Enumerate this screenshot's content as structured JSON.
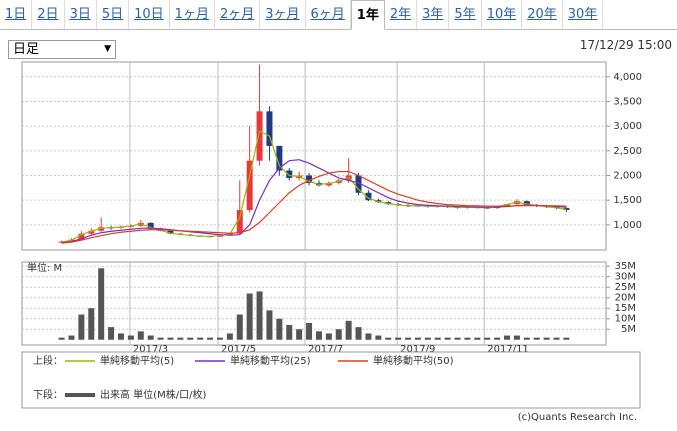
{
  "tabs": {
    "items": [
      "1日",
      "2日",
      "3日",
      "5日",
      "10日",
      "1ヶ月",
      "2ヶ月",
      "3ヶ月",
      "6ヶ月",
      "1年",
      "2年",
      "3年",
      "5年",
      "10年",
      "20年",
      "30年"
    ],
    "selected": 9
  },
  "dropdown": "日足",
  "timestamp": "17/12/29 15:00",
  "chart_data": [
    {
      "type": "candlestick",
      "open": [
        640,
        660,
        700,
        820,
        880,
        950,
        940,
        960,
        980,
        1040,
        920,
        880,
        820,
        800,
        780,
        770,
        760,
        790,
        820,
        1300,
        2300,
        3300,
        2600,
        2100,
        1950,
        2000,
        1850,
        1800,
        1850,
        1900,
        2000,
        1650,
        1500,
        1460,
        1420,
        1400,
        1380,
        1390,
        1370,
        1380,
        1360,
        1350,
        1360,
        1350,
        1340,
        1380,
        1420,
        1480,
        1400,
        1380,
        1360,
        1340
      ],
      "high": [
        680,
        730,
        870,
        930,
        1150,
        980,
        990,
        1010,
        1100,
        1050,
        940,
        890,
        830,
        810,
        790,
        780,
        800,
        830,
        1900,
        3000,
        4250,
        3400,
        2600,
        2150,
        2080,
        2050,
        1900,
        1880,
        1930,
        2350,
        2050,
        1700,
        1530,
        1480,
        1440,
        1420,
        1400,
        1410,
        1400,
        1395,
        1380,
        1370,
        1375,
        1365,
        1390,
        1430,
        1520,
        1490,
        1420,
        1395,
        1375,
        1355
      ],
      "low": [
        630,
        650,
        690,
        800,
        860,
        900,
        920,
        940,
        960,
        900,
        870,
        810,
        790,
        770,
        760,
        750,
        750,
        780,
        810,
        1250,
        2200,
        2300,
        2000,
        1900,
        1900,
        1800,
        1780,
        1770,
        1820,
        1850,
        1600,
        1480,
        1440,
        1400,
        1380,
        1360,
        1360,
        1350,
        1350,
        1340,
        1330,
        1330,
        1335,
        1320,
        1320,
        1370,
        1410,
        1380,
        1360,
        1340,
        1320,
        1260
      ],
      "close": [
        660,
        700,
        820,
        880,
        950,
        940,
        960,
        980,
        1040,
        920,
        880,
        820,
        800,
        780,
        770,
        760,
        790,
        820,
        1300,
        2300,
        3300,
        2600,
        2100,
        1950,
        2000,
        1850,
        1800,
        1850,
        1900,
        2000,
        1650,
        1500,
        1460,
        1420,
        1400,
        1380,
        1390,
        1370,
        1380,
        1360,
        1350,
        1360,
        1350,
        1340,
        1380,
        1420,
        1480,
        1400,
        1380,
        1360,
        1340,
        1300
      ],
      "up_color": "#e8383d",
      "down_color": "#1f3a84",
      "legend_label": "上段：",
      "series": [
        {
          "name": "単純移動平均(5)",
          "color": "#9cb800",
          "values": [
            650,
            690,
            800,
            870,
            930,
            945,
            955,
            975,
            1020,
            950,
            890,
            830,
            805,
            785,
            775,
            765,
            785,
            815,
            1150,
            2000,
            2900,
            2800,
            2200,
            2000,
            1980,
            1880,
            1820,
            1840,
            1880,
            1960,
            1720,
            1540,
            1470,
            1430,
            1405,
            1385,
            1390,
            1375,
            1378,
            1365,
            1355,
            1358,
            1352,
            1345,
            1370,
            1410,
            1460,
            1420,
            1390,
            1365,
            1345,
            1310
          ]
        },
        {
          "name": "単純移動平均(25)",
          "color": "#7a2ccf",
          "values": [
            640,
            660,
            720,
            790,
            840,
            870,
            890,
            910,
            930,
            935,
            920,
            900,
            880,
            860,
            840,
            820,
            800,
            790,
            800,
            1000,
            1500,
            1900,
            2150,
            2300,
            2320,
            2250,
            2150,
            2050,
            1950,
            1900,
            1850,
            1750,
            1650,
            1550,
            1480,
            1440,
            1410,
            1395,
            1385,
            1380,
            1370,
            1365,
            1360,
            1355,
            1360,
            1370,
            1390,
            1400,
            1395,
            1385,
            1370,
            1355
          ]
        },
        {
          "name": "単純移動平均(50)",
          "color": "#e03c20",
          "values": [
            630,
            650,
            690,
            740,
            780,
            820,
            850,
            870,
            890,
            900,
            900,
            890,
            880,
            870,
            860,
            850,
            840,
            830,
            840,
            900,
            1050,
            1250,
            1450,
            1650,
            1800,
            1900,
            1980,
            2050,
            2080,
            2080,
            2000,
            1900,
            1800,
            1700,
            1620,
            1560,
            1500,
            1460,
            1430,
            1410,
            1400,
            1390,
            1385,
            1380,
            1378,
            1380,
            1385,
            1390,
            1390,
            1388,
            1385,
            1380
          ]
        }
      ],
      "xlim": [
        -4,
        55
      ],
      "xticks": [
        {
          "value": 6.9,
          "label": "2017/3"
        },
        {
          "value": 15.8,
          "label": "2017/5"
        },
        {
          "value": 24.6,
          "label": "2017/7"
        },
        {
          "value": 33.9,
          "label": "2017/9"
        },
        {
          "value": 42.7,
          "label": "2017/11"
        }
      ],
      "ylim": [
        490,
        4300
      ],
      "yticks": [
        {
          "value": 1000,
          "label": "1,000"
        },
        {
          "value": 1500,
          "label": "1,500"
        },
        {
          "value": 2000,
          "label": "2,000"
        },
        {
          "value": 2500,
          "label": "2,500"
        },
        {
          "value": 3000,
          "label": "3,000"
        },
        {
          "value": 3500,
          "label": "3,500"
        },
        {
          "value": 4000,
          "label": "4,000"
        }
      ],
      "grid": true
    },
    {
      "type": "bar",
      "unit_label": "単位: M",
      "legend_label": "下段：",
      "series": [
        {
          "name": "出来高 単位(M株/口/枚)",
          "color": "#555555",
          "values": [
            1,
            2,
            12,
            15,
            34,
            6,
            3,
            2,
            4,
            2,
            1,
            1,
            1,
            1,
            1,
            1,
            1,
            3,
            12,
            22,
            23,
            14,
            10,
            7,
            5,
            8,
            4,
            3,
            5,
            9,
            6,
            3,
            2,
            1,
            1,
            1,
            1,
            1,
            1,
            1,
            1,
            1,
            1,
            1,
            1,
            2,
            2,
            1,
            1,
            1,
            1,
            1
          ]
        }
      ],
      "ylim": [
        -2.5,
        37
      ],
      "yticks": [
        {
          "value": 5,
          "label": "5M"
        },
        {
          "value": 10,
          "label": "10M"
        },
        {
          "value": 15,
          "label": "15M"
        },
        {
          "value": 20,
          "label": "20M"
        },
        {
          "value": 25,
          "label": "25M"
        },
        {
          "value": 30,
          "label": "30M"
        },
        {
          "value": 35,
          "label": "35M"
        }
      ],
      "grid": true
    }
  ],
  "copyright": "(c)Quants Research Inc."
}
